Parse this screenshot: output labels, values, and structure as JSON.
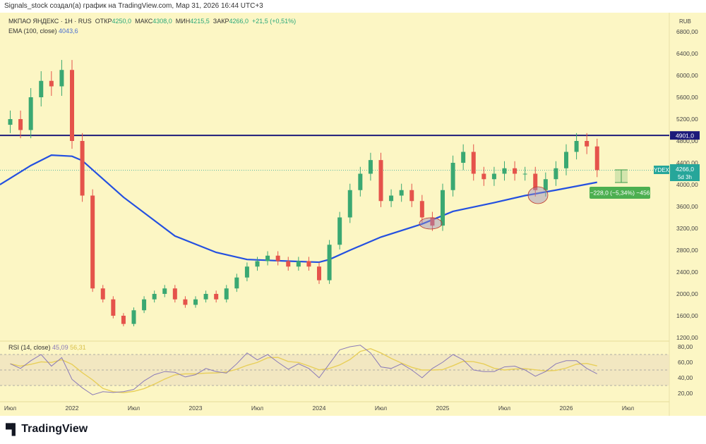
{
  "credit": "Signals_stock создал(а) график на TradingView.com, Мар 31, 2026 16:44 UTC+3",
  "legend": {
    "symbol": "МКПАО ЯНДЕКС · 1H · RUS",
    "open_label": "ОТКР",
    "open": "4250,0",
    "high_label": "МАКС",
    "high": "4308,0",
    "low_label": "МИН",
    "low": "4215,5",
    "close_label": "ЗАКР",
    "close": "4266,0",
    "change": "+21,5 (+0,51%)",
    "ema_label": "EMA (100, close)",
    "ema_value": "4043,6"
  },
  "rsi_legend": {
    "label": "RSI (14, close)",
    "value": "45,09",
    "ma_value": "56,31"
  },
  "logo": "TradingView",
  "colors": {
    "background": "#fcf6c4",
    "up": "#3aa872",
    "down": "#e5534b",
    "ema": "#2450e0",
    "level": "#1c1a7a",
    "rsi": "#8a7ab8",
    "rsi_ma": "#e8cf5a",
    "ticker_badge": "#26a69a"
  },
  "chart_data": {
    "type": "candlestick",
    "currency": "RUB",
    "price_ticks": [
      "6800,00",
      "6400,00",
      "6000,00",
      "5600,00",
      "5200,00",
      "4800,00",
      "4400,00",
      "4000,00",
      "3600,00",
      "3200,00",
      "2800,00",
      "2400,00",
      "2000,00",
      "1600,00",
      "1200,00"
    ],
    "price_tick_values": [
      6800,
      6400,
      6000,
      5600,
      5200,
      4800,
      4400,
      4000,
      3600,
      3200,
      2800,
      2400,
      2000,
      1600,
      1200
    ],
    "time_ticks": [
      [
        "Июл",
        "2021-07"
      ],
      [
        "2022",
        "2022-01"
      ],
      [
        "Июл",
        "2022-07"
      ],
      [
        "2023",
        "2023-01"
      ],
      [
        "Июл",
        "2023-07"
      ],
      [
        "2024",
        "2024-01"
      ],
      [
        "Июл",
        "2024-07"
      ],
      [
        "2025",
        "2025-01"
      ],
      [
        "Июл",
        "2025-07"
      ],
      [
        "2026",
        "2026-01"
      ],
      [
        "Июл",
        "2026-07"
      ]
    ],
    "close_series": [
      [
        "2021-07",
        5200
      ],
      [
        "2021-08",
        5000
      ],
      [
        "2021-09",
        5600
      ],
      [
        "2021-10",
        5900
      ],
      [
        "2021-11",
        5800
      ],
      [
        "2021-12",
        6100
      ],
      [
        "2022-01",
        4800
      ],
      [
        "2022-02",
        3800
      ],
      [
        "2022-03",
        2100
      ],
      [
        "2022-04",
        1900
      ],
      [
        "2022-05",
        1600
      ],
      [
        "2022-06",
        1450
      ],
      [
        "2022-07",
        1700
      ],
      [
        "2022-08",
        1900
      ],
      [
        "2022-09",
        2000
      ],
      [
        "2022-10",
        2100
      ],
      [
        "2022-11",
        1900
      ],
      [
        "2022-12",
        1800
      ],
      [
        "2023-01",
        1900
      ],
      [
        "2023-02",
        2000
      ],
      [
        "2023-03",
        1900
      ],
      [
        "2023-04",
        2100
      ],
      [
        "2023-05",
        2300
      ],
      [
        "2023-06",
        2500
      ],
      [
        "2023-07",
        2600
      ],
      [
        "2023-08",
        2700
      ],
      [
        "2023-09",
        2600
      ],
      [
        "2023-10",
        2500
      ],
      [
        "2023-11",
        2600
      ],
      [
        "2023-12",
        2500
      ],
      [
        "2024-01",
        2250
      ],
      [
        "2024-02",
        2900
      ],
      [
        "2024-03",
        3400
      ],
      [
        "2024-04",
        3900
      ],
      [
        "2024-05",
        4200
      ],
      [
        "2024-06",
        4450
      ],
      [
        "2024-07",
        3700
      ],
      [
        "2024-08",
        3800
      ],
      [
        "2024-09",
        3900
      ],
      [
        "2024-10",
        3700
      ],
      [
        "2024-11",
        3400
      ],
      [
        "2024-12",
        3250
      ],
      [
        "2025-01",
        3900
      ],
      [
        "2025-02",
        4400
      ],
      [
        "2025-03",
        4600
      ],
      [
        "2025-04",
        4200
      ],
      [
        "2025-05",
        4100
      ],
      [
        "2025-06",
        4200
      ],
      [
        "2025-07",
        4300
      ],
      [
        "2025-08",
        4200
      ],
      [
        "2025-09",
        4200
      ],
      [
        "2025-10",
        3900
      ],
      [
        "2025-11",
        4100
      ],
      [
        "2025-12",
        4300
      ],
      [
        "2026-01",
        4600
      ],
      [
        "2026-02",
        4800
      ],
      [
        "2026-03",
        4700
      ],
      [
        "2026-03-31",
        4266
      ]
    ],
    "ema_series": [
      [
        "2021-06",
        4000
      ],
      [
        "2021-09",
        4350
      ],
      [
        "2021-11",
        4540
      ],
      [
        "2022-01",
        4520
      ],
      [
        "2022-02",
        4440
      ],
      [
        "2022-06",
        3770
      ],
      [
        "2022-11",
        3060
      ],
      [
        "2023-03",
        2760
      ],
      [
        "2023-06",
        2630
      ],
      [
        "2023-10",
        2600
      ],
      [
        "2024-01",
        2580
      ],
      [
        "2024-02",
        2630
      ],
      [
        "2024-04",
        2800
      ],
      [
        "2024-07",
        3040
      ],
      [
        "2024-11",
        3280
      ],
      [
        "2025-02",
        3510
      ],
      [
        "2025-06",
        3670
      ],
      [
        "2025-09",
        3800
      ],
      [
        "2025-12",
        3900
      ],
      [
        "2026-03-31",
        4043.6
      ]
    ],
    "level": {
      "value": 4901,
      "label": "4901,0"
    },
    "last_price": {
      "ticker": "YDEX",
      "value": 4266,
      "label": "4266,0",
      "countdown": "5d 3h"
    },
    "measure": {
      "label": "−228,0 (−5,34%) −456"
    },
    "rsi": {
      "ticks": [
        "80,00",
        "60,00",
        "40,00",
        "20,00"
      ],
      "tick_values": [
        80,
        60,
        40,
        20
      ],
      "bands": [
        70,
        50,
        30
      ],
      "series": [
        [
          "2021-07",
          58
        ],
        [
          "2021-08",
          52
        ],
        [
          "2021-09",
          62
        ],
        [
          "2021-10",
          70
        ],
        [
          "2021-11",
          55
        ],
        [
          "2021-12",
          66
        ],
        [
          "2022-01",
          38
        ],
        [
          "2022-02",
          27
        ],
        [
          "2022-03",
          18
        ],
        [
          "2022-04",
          22
        ],
        [
          "2022-05",
          21
        ],
        [
          "2022-06",
          22
        ],
        [
          "2022-07",
          25
        ],
        [
          "2022-08",
          36
        ],
        [
          "2022-09",
          44
        ],
        [
          "2022-10",
          48
        ],
        [
          "2022-11",
          47
        ],
        [
          "2022-12",
          41
        ],
        [
          "2023-01",
          44
        ],
        [
          "2023-02",
          52
        ],
        [
          "2023-03",
          48
        ],
        [
          "2023-04",
          46
        ],
        [
          "2023-05",
          58
        ],
        [
          "2023-06",
          72
        ],
        [
          "2023-07",
          63
        ],
        [
          "2023-08",
          70
        ],
        [
          "2023-09",
          60
        ],
        [
          "2023-10",
          51
        ],
        [
          "2023-11",
          58
        ],
        [
          "2023-12",
          52
        ],
        [
          "2024-01",
          40
        ],
        [
          "2024-02",
          58
        ],
        [
          "2024-03",
          76
        ],
        [
          "2024-04",
          80
        ],
        [
          "2024-05",
          82
        ],
        [
          "2024-06",
          72
        ],
        [
          "2024-07",
          54
        ],
        [
          "2024-08",
          52
        ],
        [
          "2024-09",
          58
        ],
        [
          "2024-10",
          50
        ],
        [
          "2024-11",
          40
        ],
        [
          "2024-12",
          52
        ],
        [
          "2025-01",
          60
        ],
        [
          "2025-02",
          70
        ],
        [
          "2025-03",
          63
        ],
        [
          "2025-04",
          50
        ],
        [
          "2025-05",
          48
        ],
        [
          "2025-06",
          48
        ],
        [
          "2025-07",
          54
        ],
        [
          "2025-08",
          55
        ],
        [
          "2025-09",
          50
        ],
        [
          "2025-10",
          42
        ],
        [
          "2025-11",
          48
        ],
        [
          "2025-12",
          58
        ],
        [
          "2026-01",
          62
        ],
        [
          "2026-02",
          62
        ],
        [
          "2026-03",
          52
        ],
        [
          "2026-03-31",
          45.09
        ]
      ]
    }
  }
}
